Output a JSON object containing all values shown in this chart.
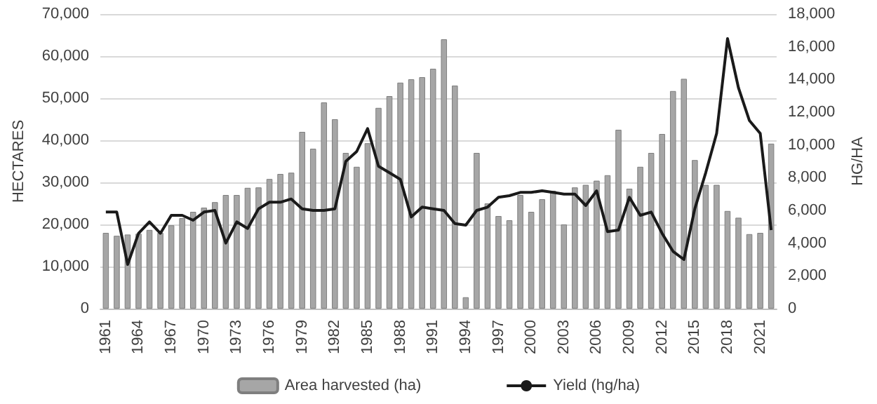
{
  "chart_data": {
    "type": "bar",
    "ylabel": "HECTARES",
    "y2label": "HG/HA",
    "categories": [
      "1961",
      null,
      null,
      "1964",
      null,
      null,
      "1967",
      null,
      null,
      "1970",
      null,
      null,
      "1973",
      null,
      null,
      "1976",
      null,
      null,
      "1979",
      null,
      null,
      "1982",
      null,
      null,
      "1985",
      null,
      null,
      "1988",
      null,
      null,
      "1991",
      null,
      null,
      "1994",
      null,
      null,
      "1997",
      null,
      null,
      "2000",
      null,
      null,
      "2003",
      null,
      null,
      "2006",
      null,
      null,
      "2009",
      null,
      null,
      "2012",
      null,
      null,
      "2015",
      null,
      null,
      "2018",
      null,
      null,
      "2021",
      null
    ],
    "series": [
      {
        "name": "Area harvested (ha)",
        "color": "#a6a6a6",
        "values": [
          18000,
          17300,
          17600,
          17800,
          18700,
          18000,
          19800,
          21500,
          23000,
          24000,
          25300,
          27000,
          27000,
          28700,
          28800,
          30800,
          32000,
          32300,
          42000,
          38000,
          49000,
          45000,
          37000,
          33700,
          39300,
          47700,
          50500,
          53700,
          54500,
          55000,
          57000,
          64000,
          53000,
          2700,
          37000,
          25000,
          22000,
          21000,
          27000,
          23000,
          26000,
          28000,
          20000,
          28800,
          29400,
          30400,
          31700,
          42500,
          28500,
          33700,
          37000,
          41500,
          51700,
          54600,
          35300,
          29400,
          29400,
          23200,
          21600,
          17700,
          18000,
          39200
        ]
      },
      {
        "name": "Yield (hg/ha)",
        "type": "line",
        "axis": "y2",
        "color": "#1a1a1a",
        "values": [
          5900,
          5900,
          2700,
          4600,
          5300,
          4600,
          5700,
          5700,
          5400,
          5900,
          6000,
          4000,
          5300,
          4900,
          6100,
          6500,
          6500,
          6700,
          6100,
          6000,
          6000,
          6100,
          9000,
          9600,
          11000,
          8700,
          8300,
          7900,
          5600,
          6200,
          6100,
          6000,
          5200,
          5100,
          6000,
          6200,
          6800,
          6900,
          7100,
          7100,
          7200,
          7100,
          7000,
          7000,
          6300,
          7200,
          4700,
          4800,
          6800,
          5700,
          5900,
          4600,
          3500,
          3000,
          6100,
          8300,
          10700,
          16500,
          13500,
          11500,
          10700,
          4800
        ]
      }
    ],
    "ylim": [
      0,
      70000
    ],
    "yticks": [
      {
        "value": 0,
        "label": "0"
      },
      {
        "value": 10000,
        "label": "10,000"
      },
      {
        "value": 20000,
        "label": "20,000"
      },
      {
        "value": 30000,
        "label": "30,000"
      },
      {
        "value": 40000,
        "label": "40,000"
      },
      {
        "value": 50000,
        "label": "50,000"
      },
      {
        "value": 60000,
        "label": "60,000"
      },
      {
        "value": 70000,
        "label": "70,000"
      }
    ],
    "y2lim": [
      0,
      18000
    ],
    "y2ticks": [
      {
        "value": 0,
        "label": "0"
      },
      {
        "value": 2000,
        "label": "2,000"
      },
      {
        "value": 4000,
        "label": "4,000"
      },
      {
        "value": 6000,
        "label": "6,000"
      },
      {
        "value": 8000,
        "label": "8,000"
      },
      {
        "value": 10000,
        "label": "10,000"
      },
      {
        "value": 12000,
        "label": "12,000"
      },
      {
        "value": 14000,
        "label": "14,000"
      },
      {
        "value": 16000,
        "label": "16,000"
      },
      {
        "value": 18000,
        "label": "18,000"
      }
    ],
    "grid": "y",
    "legend": "bottom",
    "marker": "none",
    "line_style": "solid"
  }
}
